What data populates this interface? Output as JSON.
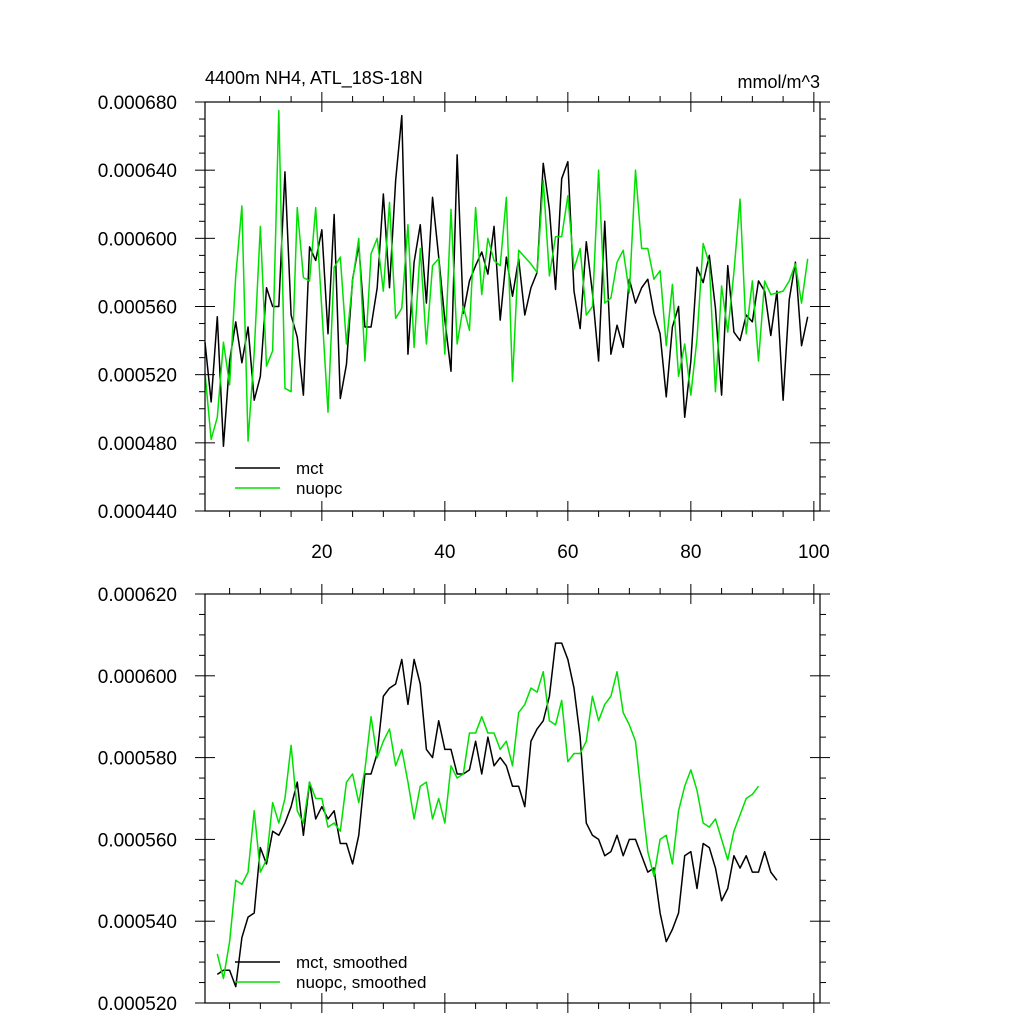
{
  "chart_data": [
    {
      "type": "line",
      "title": "4400m NH4, ATL_18S-18N",
      "units": "mmol/m^3",
      "xlim": [
        1,
        101
      ],
      "ylim": [
        0.00044,
        0.00068
      ],
      "x_ticks": [
        20,
        40,
        60,
        80,
        100
      ],
      "x_tick_labels": [
        "20",
        "40",
        "60",
        "80",
        "100"
      ],
      "y_ticks": [
        0.00044,
        0.00048,
        0.00052,
        0.00056,
        0.0006,
        0.00064,
        0.00068
      ],
      "y_tick_labels": [
        "0.000440",
        "0.000480",
        "0.000520",
        "0.000560",
        "0.000600",
        "0.000640",
        "0.000680"
      ],
      "legend": [
        "mct",
        "nuopc"
      ],
      "series": [
        {
          "name": "mct",
          "color": "#000000",
          "x_start": 1,
          "values": [
            0.000539,
            0.000504,
            0.000554,
            0.000478,
            0.000528,
            0.000551,
            0.000527,
            0.000548,
            0.000505,
            0.000519,
            0.000571,
            0.00056,
            0.00056,
            0.000639,
            0.000555,
            0.000542,
            0.000508,
            0.000595,
            0.000587,
            0.000605,
            0.000544,
            0.000614,
            0.000506,
            0.000526,
            0.000576,
            0.000596,
            0.000548,
            0.000548,
            0.000571,
            0.000626,
            0.000571,
            0.000634,
            0.000672,
            0.000532,
            0.000586,
            0.000608,
            0.000562,
            0.000624,
            0.000589,
            0.000552,
            0.000522,
            0.000649,
            0.000556,
            0.000575,
            0.000584,
            0.000592,
            0.000579,
            0.000607,
            0.000552,
            0.000589,
            0.000566,
            0.000588,
            0.000555,
            0.000571,
            0.00058,
            0.000644,
            0.000617,
            0.00057,
            0.000635,
            0.000645,
            0.000569,
            0.000547,
            0.000598,
            0.000568,
            0.000528,
            0.00061,
            0.000532,
            0.000549,
            0.000536,
            0.000576,
            0.000562,
            0.000571,
            0.000576,
            0.000556,
            0.000544,
            0.000507,
            0.000548,
            0.00056,
            0.000495,
            0.000528,
            0.000583,
            0.000574,
            0.00059,
            0.000559,
            0.000508,
            0.000584,
            0.000545,
            0.00054,
            0.000555,
            0.000551,
            0.000575,
            0.000569,
            0.000543,
            0.000569,
            0.000505,
            0.000564,
            0.000586,
            0.000537,
            0.000554
          ]
        },
        {
          "name": "nuopc",
          "color": "#00e000",
          "x_start": 1,
          "values": [
            0.000521,
            0.000482,
            0.000495,
            0.000539,
            0.000514,
            0.000578,
            0.000619,
            0.000481,
            0.000533,
            0.000607,
            0.000525,
            0.000534,
            0.000675,
            0.000512,
            0.00051,
            0.000618,
            0.000577,
            0.000575,
            0.000618,
            0.000558,
            0.000498,
            0.000583,
            0.000589,
            0.000538,
            0.000575,
            0.0006,
            0.000528,
            0.000591,
            0.0006,
            0.000569,
            0.000621,
            0.000553,
            0.000559,
            0.000608,
            0.000536,
            0.000594,
            0.000538,
            0.000584,
            0.000588,
            0.000532,
            0.000617,
            0.000538,
            0.00056,
            0.000546,
            0.000618,
            0.000567,
            0.0006,
            0.000587,
            0.000584,
            0.000624,
            0.000516,
            0.000593,
            0.000589,
            0.000585,
            0.00058,
            0.000634,
            0.000578,
            0.000601,
            0.000601,
            0.000625,
            0.000582,
            0.000594,
            0.000555,
            0.00056,
            0.00064,
            0.000562,
            0.000565,
            0.000586,
            0.000593,
            0.000568,
            0.00064,
            0.000594,
            0.000594,
            0.000576,
            0.000581,
            0.000537,
            0.000573,
            0.000519,
            0.000538,
            0.000508,
            0.000541,
            0.000597,
            0.000585,
            0.00051,
            0.000572,
            0.000545,
            0.00058,
            0.000623,
            0.000544,
            0.000575,
            0.000528,
            0.000575,
            0.000567,
            0.000568,
            0.000569,
            0.000575,
            0.000585,
            0.000562,
            0.000588
          ]
        }
      ]
    },
    {
      "type": "line",
      "title": "",
      "xlim": [
        1,
        101
      ],
      "ylim": [
        0.00052,
        0.00062
      ],
      "x_ticks": [
        20,
        40,
        60,
        80,
        100
      ],
      "y_ticks": [
        0.00052,
        0.00054,
        0.00056,
        0.00058,
        0.0006,
        0.00062
      ],
      "y_tick_labels": [
        "0.000520",
        "0.000540",
        "0.000560",
        "0.000580",
        "0.000600",
        "0.000620"
      ],
      "legend": [
        "mct, smoothed",
        "nuopc, smoothed"
      ],
      "series": [
        {
          "name": "mct, smoothed",
          "color": "#000000",
          "x_start": 3,
          "values": [
            0.000527,
            0.000528,
            0.000528,
            0.000524,
            0.000536,
            0.000541,
            0.000542,
            0.000558,
            0.000554,
            0.000562,
            0.000561,
            0.000564,
            0.000568,
            0.000574,
            0.000561,
            0.000574,
            0.000565,
            0.000568,
            0.000565,
            0.000567,
            0.000559,
            0.000559,
            0.000554,
            0.000561,
            0.000576,
            0.000576,
            0.000581,
            0.000595,
            0.000597,
            0.000598,
            0.000604,
            0.000593,
            0.000604,
            0.000598,
            0.000582,
            0.00058,
            0.000589,
            0.000582,
            0.000582,
            0.000576,
            0.000576,
            0.000577,
            0.000584,
            0.000576,
            0.000585,
            0.000578,
            0.00058,
            0.000578,
            0.000573,
            0.000573,
            0.000568,
            0.000584,
            0.000587,
            0.000589,
            0.000595,
            0.000608,
            0.000608,
            0.000604,
            0.000597,
            0.000585,
            0.000564,
            0.000561,
            0.00056,
            0.000556,
            0.000557,
            0.000561,
            0.000556,
            0.00056,
            0.00056,
            0.000556,
            0.000552,
            0.000553,
            0.000542,
            0.000535,
            0.000538,
            0.000542,
            0.000556,
            0.000557,
            0.000548,
            0.000559,
            0.000558,
            0.000553,
            0.000545,
            0.000548,
            0.000556,
            0.000553,
            0.000556,
            0.000552,
            0.000552,
            0.000557,
            0.000552,
            0.00055
          ]
        },
        {
          "name": "nuopc, smoothed",
          "color": "#00e000",
          "x_start": 3,
          "values": [
            0.000532,
            0.000526,
            0.000535,
            0.00055,
            0.000549,
            0.000552,
            0.000567,
            0.000552,
            0.000555,
            0.000569,
            0.000564,
            0.00057,
            0.000583,
            0.000567,
            0.000564,
            0.000574,
            0.00057,
            0.00057,
            0.000563,
            0.000564,
            0.000562,
            0.000574,
            0.000576,
            0.000569,
            0.000577,
            0.00059,
            0.00058,
            0.000584,
            0.000587,
            0.000578,
            0.000582,
            0.000574,
            0.000565,
            0.000573,
            0.000574,
            0.000565,
            0.00057,
            0.000564,
            0.000578,
            0.000575,
            0.000576,
            0.000586,
            0.000586,
            0.00059,
            0.000586,
            0.000586,
            0.000582,
            0.000584,
            0.000578,
            0.000591,
            0.000593,
            0.000597,
            0.000596,
            0.000601,
            0.000589,
            0.000588,
            0.000594,
            0.000579,
            0.000581,
            0.000581,
            0.000584,
            0.000595,
            0.000589,
            0.000593,
            0.000595,
            0.000601,
            0.000591,
            0.000588,
            0.000584,
            0.00057,
            0.000557,
            0.000551,
            0.00056,
            0.000561,
            0.000554,
            0.000567,
            0.000573,
            0.000577,
            0.000572,
            0.000564,
            0.000563,
            0.000565,
            0.00056,
            0.000555,
            0.000562,
            0.000566,
            0.00057,
            0.000571,
            0.000573
          ]
        }
      ]
    }
  ]
}
